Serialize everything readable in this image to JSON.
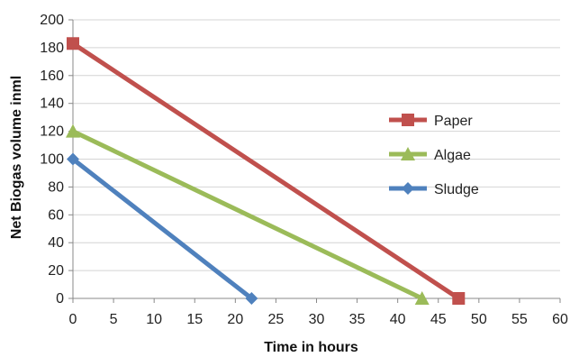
{
  "chart_data": {
    "type": "line",
    "title": "",
    "xlabel": "Time in hours",
    "ylabel": "Net Biogas volume inml",
    "xlim": [
      0,
      60
    ],
    "ylim": [
      0,
      200
    ],
    "xticks": [
      0,
      5,
      10,
      15,
      20,
      25,
      30,
      35,
      40,
      45,
      50,
      55,
      60
    ],
    "yticks": [
      0,
      20,
      40,
      60,
      80,
      100,
      120,
      140,
      160,
      180,
      200
    ],
    "grid": "horizontal",
    "legend_position": "right",
    "series": [
      {
        "name": "Paper",
        "color": "#c0504d",
        "marker": "square",
        "x": [
          0,
          47.5
        ],
        "y": [
          183,
          0
        ]
      },
      {
        "name": "Algae",
        "color": "#9bbb59",
        "marker": "triangle",
        "x": [
          0,
          43
        ],
        "y": [
          120,
          0
        ]
      },
      {
        "name": "Sludge",
        "color": "#4f81bd",
        "marker": "diamond",
        "x": [
          0,
          22
        ],
        "y": [
          100,
          0
        ]
      }
    ]
  }
}
